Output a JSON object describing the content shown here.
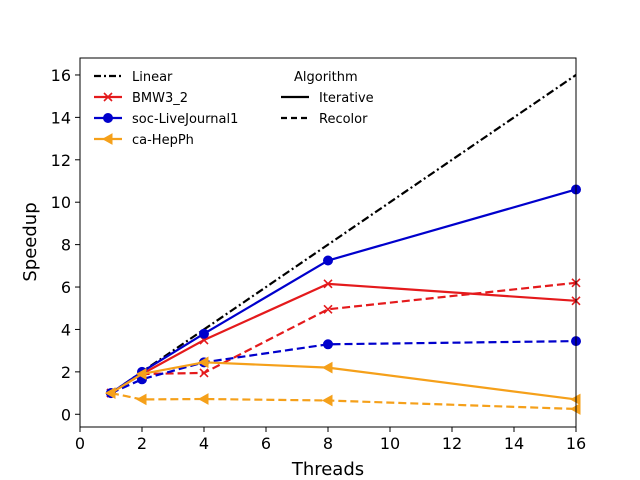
{
  "chart_data": {
    "type": "line",
    "xlabel": "Threads",
    "ylabel": "Speedup",
    "xlim": [
      0,
      16
    ],
    "ylim": [
      -0.6,
      16.8
    ],
    "xticks": [
      0,
      2,
      4,
      6,
      8,
      10,
      12,
      14,
      16
    ],
    "yticks": [
      0,
      2,
      4,
      6,
      8,
      10,
      12,
      14,
      16
    ],
    "grid": false,
    "legend_position": "top-left",
    "legend_group_title": "Algorithm",
    "series": [
      {
        "id": "linear",
        "name": "Linear",
        "color": "#000000",
        "style": "dashdot",
        "marker": "none",
        "x": [
          1,
          16
        ],
        "values": [
          1,
          16
        ]
      },
      {
        "id": "bmw-iter",
        "name": "BMW3_2",
        "color": "#e41a1c",
        "style": "solid",
        "marker": "x",
        "x": [
          1,
          2,
          4,
          8,
          16
        ],
        "values": [
          1.0,
          1.9,
          3.5,
          6.15,
          5.35
        ]
      },
      {
        "id": "bmw-recolor",
        "name": "BMW3_2",
        "color": "#e41a1c",
        "style": "dashed",
        "marker": "x",
        "x": [
          1,
          2,
          4,
          8,
          16
        ],
        "values": [
          1.0,
          1.9,
          1.95,
          4.95,
          6.2
        ]
      },
      {
        "id": "soc-iter",
        "name": "soc-LiveJournal1",
        "color": "#0000cc",
        "style": "solid",
        "marker": "circle",
        "x": [
          1,
          2,
          4,
          8,
          16
        ],
        "values": [
          1.0,
          2.0,
          3.8,
          7.25,
          10.6
        ]
      },
      {
        "id": "soc-recolor",
        "name": "soc-LiveJournal1",
        "color": "#0000cc",
        "style": "dashed",
        "marker": "circle",
        "x": [
          1,
          2,
          4,
          8,
          16
        ],
        "values": [
          1.0,
          1.65,
          2.45,
          3.3,
          3.45
        ]
      },
      {
        "id": "ca-iter",
        "name": "ca-HepPh",
        "color": "#f5a01a",
        "style": "solid",
        "marker": "triangle-left",
        "x": [
          1,
          2,
          4,
          8,
          16
        ],
        "values": [
          1.0,
          1.9,
          2.45,
          2.2,
          0.7
        ]
      },
      {
        "id": "ca-recolor",
        "name": "ca-HepPh",
        "color": "#f5a01a",
        "style": "dashed",
        "marker": "triangle-left",
        "x": [
          1,
          2,
          4,
          8,
          16
        ],
        "values": [
          1.0,
          0.7,
          0.72,
          0.65,
          0.25
        ]
      }
    ],
    "legend_entries": [
      {
        "label": "Linear",
        "color": "#000000",
        "style": "dashdot",
        "marker": "none"
      },
      {
        "label": "BMW3_2",
        "color": "#e41a1c",
        "style": "solid",
        "marker": "x"
      },
      {
        "label": "soc-LiveJournal1",
        "color": "#0000cc",
        "style": "solid",
        "marker": "circle"
      },
      {
        "label": "ca-HepPh",
        "color": "#f5a01a",
        "style": "solid",
        "marker": "triangle-left"
      }
    ],
    "algorithm_entries": [
      {
        "label": "Iterative",
        "color": "#000000",
        "style": "solid"
      },
      {
        "label": "Recolor",
        "color": "#000000",
        "style": "dashed"
      }
    ]
  }
}
